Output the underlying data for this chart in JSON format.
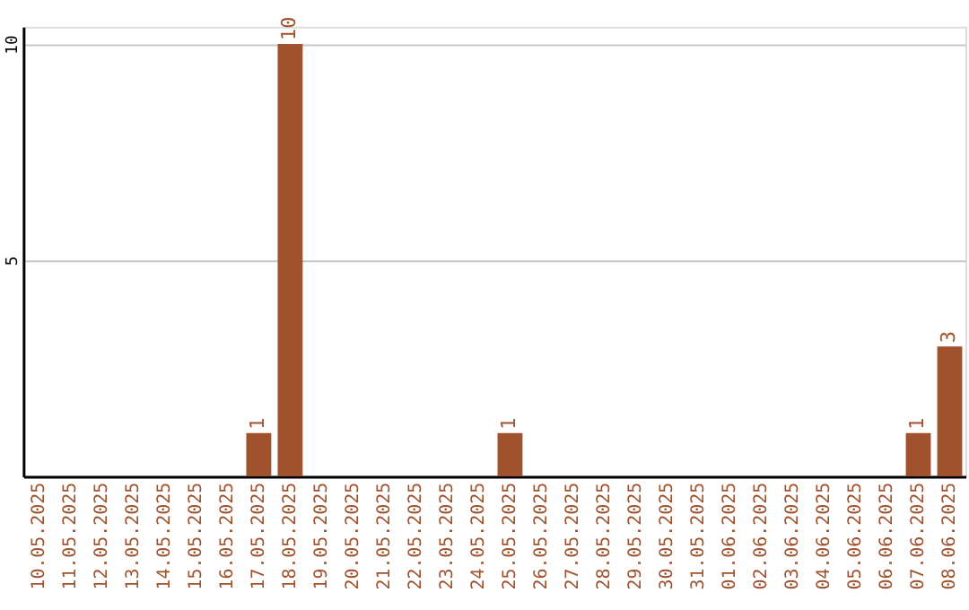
{
  "chart_data": {
    "type": "bar",
    "categories": [
      "10.05.2025",
      "11.05.2025",
      "12.05.2025",
      "13.05.2025",
      "14.05.2025",
      "15.05.2025",
      "16.05.2025",
      "17.05.2025",
      "18.05.2025",
      "19.05.2025",
      "20.05.2025",
      "21.05.2025",
      "22.05.2025",
      "23.05.2025",
      "24.05.2025",
      "25.05.2025",
      "26.05.2025",
      "27.05.2025",
      "28.05.2025",
      "29.05.2025",
      "30.05.2025",
      "31.05.2025",
      "01.06.2025",
      "02.06.2025",
      "03.06.2025",
      "04.06.2025",
      "05.06.2025",
      "06.06.2025",
      "07.06.2025",
      "08.06.2025"
    ],
    "values": [
      0,
      0,
      0,
      0,
      0,
      0,
      0,
      1,
      10,
      0,
      0,
      0,
      0,
      0,
      0,
      1,
      0,
      0,
      0,
      0,
      0,
      0,
      0,
      0,
      0,
      0,
      0,
      0,
      1,
      3
    ],
    "value_labels": [
      null,
      null,
      null,
      null,
      null,
      null,
      null,
      "1",
      "10",
      null,
      null,
      null,
      null,
      null,
      null,
      "1",
      null,
      null,
      null,
      null,
      null,
      null,
      null,
      null,
      null,
      null,
      null,
      null,
      "1",
      "3"
    ],
    "color": "#a0522d",
    "ylim": [
      0,
      10.4
    ],
    "yticks": [
      5,
      10
    ],
    "grid": "y"
  }
}
